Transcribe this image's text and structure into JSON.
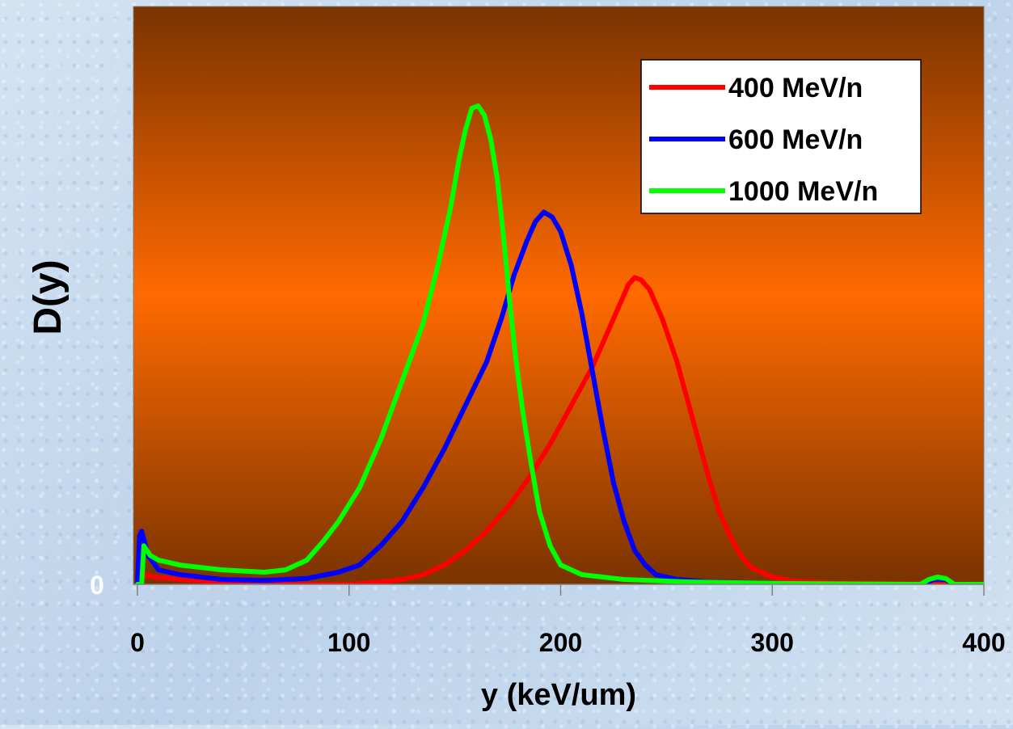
{
  "chart_data": {
    "type": "line",
    "title": "",
    "xlabel": "y (keV/um)",
    "ylabel": "D(y)",
    "xlim": [
      0,
      400
    ],
    "ylim": [
      0,
      1
    ],
    "x_ticks": [
      0,
      100,
      200,
      300,
      400
    ],
    "y_ticks": [
      0
    ],
    "grid": false,
    "legend_position": "top-right",
    "plot_background": [
      "#7a3300",
      "#ff6a00",
      "#7a3300"
    ],
    "series": [
      {
        "name": "400 MeV/n",
        "color": "#ff0000",
        "points": [
          [
            0,
            0.0
          ],
          [
            2,
            0.01
          ],
          [
            4,
            0.02
          ],
          [
            8,
            0.015
          ],
          [
            20,
            0.01
          ],
          [
            40,
            0.005
          ],
          [
            60,
            0.0
          ],
          [
            80,
            0.0
          ],
          [
            100,
            0.0
          ],
          [
            115,
            0.005
          ],
          [
            125,
            0.01
          ],
          [
            135,
            0.02
          ],
          [
            145,
            0.04
          ],
          [
            155,
            0.07
          ],
          [
            165,
            0.11
          ],
          [
            175,
            0.16
          ],
          [
            185,
            0.22
          ],
          [
            195,
            0.29
          ],
          [
            205,
            0.37
          ],
          [
            215,
            0.45
          ],
          [
            222,
            0.52
          ],
          [
            228,
            0.58
          ],
          [
            232,
            0.62
          ],
          [
            235,
            0.635
          ],
          [
            238,
            0.63
          ],
          [
            242,
            0.61
          ],
          [
            248,
            0.55
          ],
          [
            255,
            0.46
          ],
          [
            260,
            0.38
          ],
          [
            265,
            0.3
          ],
          [
            270,
            0.22
          ],
          [
            275,
            0.15
          ],
          [
            280,
            0.1
          ],
          [
            285,
            0.06
          ],
          [
            290,
            0.035
          ],
          [
            300,
            0.015
          ],
          [
            310,
            0.007
          ],
          [
            330,
            0.003
          ],
          [
            360,
            0.001
          ],
          [
            400,
            0.0
          ]
        ]
      },
      {
        "name": "600 MeV/n",
        "color": "#0000ff",
        "points": [
          [
            0,
            0.0
          ],
          [
            1,
            0.1
          ],
          [
            2,
            0.11
          ],
          [
            5,
            0.06
          ],
          [
            10,
            0.03
          ],
          [
            20,
            0.02
          ],
          [
            40,
            0.01
          ],
          [
            60,
            0.008
          ],
          [
            80,
            0.012
          ],
          [
            95,
            0.025
          ],
          [
            105,
            0.04
          ],
          [
            115,
            0.08
          ],
          [
            125,
            0.13
          ],
          [
            135,
            0.2
          ],
          [
            145,
            0.28
          ],
          [
            155,
            0.37
          ],
          [
            165,
            0.46
          ],
          [
            172,
            0.55
          ],
          [
            178,
            0.64
          ],
          [
            184,
            0.71
          ],
          [
            188,
            0.75
          ],
          [
            192,
            0.77
          ],
          [
            196,
            0.76
          ],
          [
            200,
            0.73
          ],
          [
            205,
            0.66
          ],
          [
            210,
            0.56
          ],
          [
            215,
            0.44
          ],
          [
            220,
            0.32
          ],
          [
            225,
            0.21
          ],
          [
            230,
            0.13
          ],
          [
            235,
            0.07
          ],
          [
            240,
            0.04
          ],
          [
            245,
            0.02
          ],
          [
            255,
            0.01
          ],
          [
            270,
            0.005
          ],
          [
            300,
            0.002
          ],
          [
            340,
            0.0
          ],
          [
            372,
            0.0
          ],
          [
            376,
            0.01
          ],
          [
            382,
            0.01
          ],
          [
            386,
            0.0
          ],
          [
            400,
            0.0
          ]
        ]
      },
      {
        "name": "1000 MeV/n",
        "color": "#00ff00",
        "points": [
          [
            0,
            0.0
          ],
          [
            2,
            0.0
          ],
          [
            3,
            0.08
          ],
          [
            6,
            0.06
          ],
          [
            10,
            0.05
          ],
          [
            20,
            0.04
          ],
          [
            40,
            0.03
          ],
          [
            60,
            0.025
          ],
          [
            70,
            0.03
          ],
          [
            80,
            0.05
          ],
          [
            88,
            0.09
          ],
          [
            95,
            0.13
          ],
          [
            105,
            0.2
          ],
          [
            115,
            0.3
          ],
          [
            125,
            0.42
          ],
          [
            135,
            0.54
          ],
          [
            142,
            0.66
          ],
          [
            148,
            0.78
          ],
          [
            152,
            0.88
          ],
          [
            155,
            0.94
          ],
          [
            158,
            0.985
          ],
          [
            161,
            0.99
          ],
          [
            164,
            0.97
          ],
          [
            167,
            0.92
          ],
          [
            170,
            0.84
          ],
          [
            173,
            0.72
          ],
          [
            176,
            0.58
          ],
          [
            179,
            0.46
          ],
          [
            182,
            0.36
          ],
          [
            186,
            0.25
          ],
          [
            190,
            0.15
          ],
          [
            195,
            0.08
          ],
          [
            200,
            0.04
          ],
          [
            210,
            0.02
          ],
          [
            230,
            0.01
          ],
          [
            260,
            0.005
          ],
          [
            300,
            0.002
          ],
          [
            370,
            0.0
          ],
          [
            374,
            0.01
          ],
          [
            378,
            0.015
          ],
          [
            382,
            0.012
          ],
          [
            386,
            0.0
          ],
          [
            400,
            0.0
          ]
        ]
      }
    ]
  }
}
